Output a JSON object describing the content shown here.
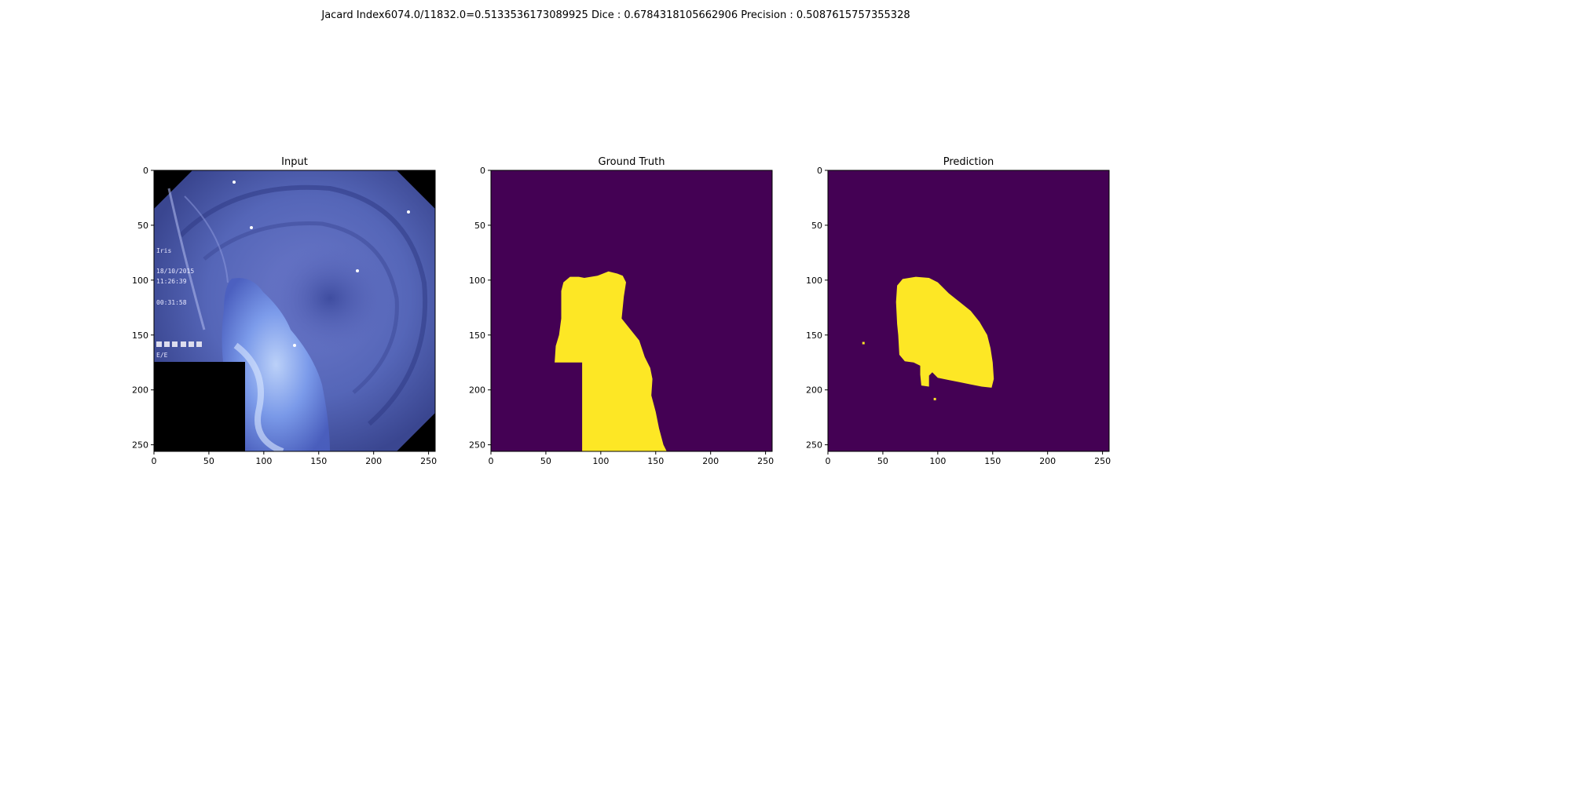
{
  "suptitle": "Jacard Index6074.0/11832.0=0.5133536173089925 Dice : 0.6784318105662906 Precision : 0.5087615757355328",
  "colors": {
    "background_mask": "#440154",
    "foreground_mask": "#fde725",
    "input_tissue": "#5f6fc4",
    "input_dark": "#000000"
  },
  "chart_data": [
    {
      "type": "heatmap",
      "title": "Input",
      "content": "endoscopic image (rgb)",
      "xlim": [
        0,
        256
      ],
      "ylim": [
        256,
        0
      ],
      "xticks": [
        0,
        50,
        100,
        150,
        200,
        250
      ],
      "yticks": [
        0,
        50,
        100,
        150,
        200,
        250
      ],
      "occluded_region": {
        "x": [
          0,
          83
        ],
        "y": [
          175,
          256
        ]
      },
      "overlay_text": [
        "Iris",
        "18/10/2015",
        "11:26:39",
        "00:31:58",
        "E/E"
      ]
    },
    {
      "type": "heatmap",
      "title": "Ground Truth",
      "content": "binary mask",
      "xlim": [
        0,
        256
      ],
      "ylim": [
        256,
        0
      ],
      "xticks": [
        0,
        50,
        100,
        150,
        200,
        250
      ],
      "yticks": [
        0,
        50,
        100,
        150,
        200,
        250
      ],
      "mask_outline": [
        [
          107,
          92
        ],
        [
          115,
          94
        ],
        [
          120,
          96
        ],
        [
          123,
          102
        ],
        [
          121,
          115
        ],
        [
          119,
          135
        ],
        [
          127,
          145
        ],
        [
          135,
          155
        ],
        [
          140,
          170
        ],
        [
          145,
          180
        ],
        [
          147,
          190
        ],
        [
          146,
          205
        ],
        [
          150,
          220
        ],
        [
          153,
          235
        ],
        [
          157,
          250
        ],
        [
          160,
          256
        ],
        [
          83,
          256
        ],
        [
          83,
          175
        ],
        [
          58,
          175
        ],
        [
          59,
          160
        ],
        [
          62,
          150
        ],
        [
          64,
          135
        ],
        [
          64,
          110
        ],
        [
          66,
          102
        ],
        [
          72,
          97
        ],
        [
          80,
          97
        ],
        [
          85,
          98
        ],
        [
          97,
          96
        ]
      ]
    },
    {
      "type": "heatmap",
      "title": "Prediction",
      "content": "binary mask",
      "xlim": [
        0,
        256
      ],
      "ylim": [
        256,
        0
      ],
      "xticks": [
        0,
        50,
        100,
        150,
        200,
        250
      ],
      "yticks": [
        0,
        50,
        100,
        150,
        200,
        250
      ],
      "mask_outline": [
        [
          80,
          97
        ],
        [
          92,
          98
        ],
        [
          100,
          102
        ],
        [
          110,
          112
        ],
        [
          120,
          120
        ],
        [
          130,
          128
        ],
        [
          138,
          138
        ],
        [
          145,
          150
        ],
        [
          148,
          162
        ],
        [
          150,
          175
        ],
        [
          151,
          190
        ],
        [
          149,
          198
        ],
        [
          140,
          197
        ],
        [
          130,
          195
        ],
        [
          120,
          193
        ],
        [
          110,
          191
        ],
        [
          100,
          189
        ],
        [
          95,
          184
        ],
        [
          92,
          187
        ],
        [
          92,
          197
        ],
        [
          85,
          196
        ],
        [
          84,
          186
        ],
        [
          84,
          178
        ],
        [
          78,
          175
        ],
        [
          70,
          174
        ],
        [
          65,
          168
        ],
        [
          64,
          150
        ],
        [
          63,
          140
        ],
        [
          62,
          120
        ],
        [
          63,
          105
        ],
        [
          68,
          99
        ]
      ],
      "specks": [
        [
          32,
          157
        ],
        [
          97,
          208
        ]
      ]
    }
  ]
}
